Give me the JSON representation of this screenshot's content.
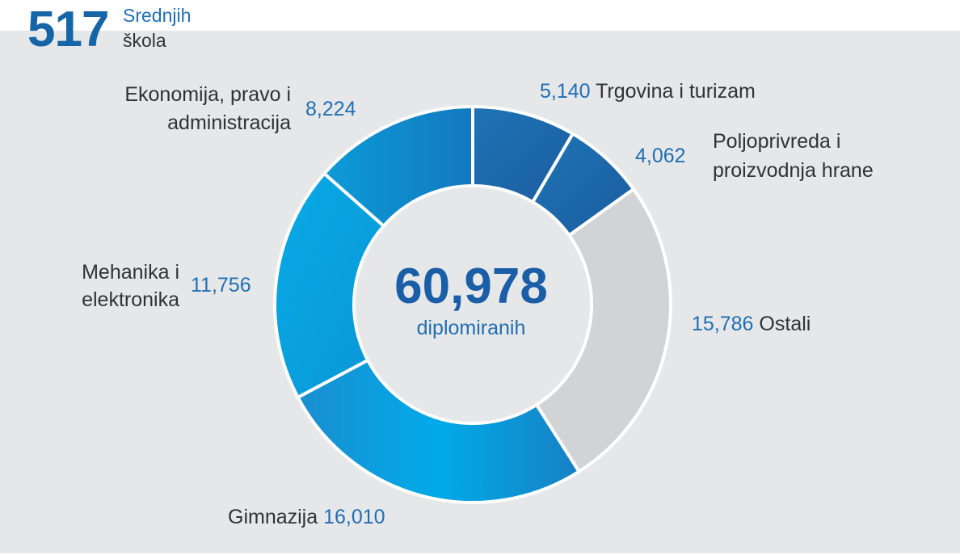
{
  "header": {
    "count": "517",
    "line1": "Srednjih",
    "line2": "škola"
  },
  "center": {
    "value": "60,978",
    "label": "diplomiranih"
  },
  "chart_data": {
    "type": "pie",
    "total": 60978,
    "slices": [
      {
        "label": "Trgovina i turizam",
        "label_line1": "Trgovina i turizam",
        "label_line2": "",
        "value": 5140,
        "value_label": "5,140",
        "color": "#1d69ab"
      },
      {
        "label": "Poljoprivreda i proizvodnja hrane",
        "label_line1": "Poljoprivreda i",
        "label_line2": "proizvodnja hrane",
        "value": 4062,
        "value_label": "4,062",
        "color": "#1c64a6"
      },
      {
        "label": "Ostali",
        "label_line1": "Ostali",
        "label_line2": "",
        "value": 15786,
        "value_label": "15,786",
        "color": "#d1d3d5"
      },
      {
        "label": "Gimnazija",
        "label_line1": "Gimnazija",
        "label_line2": "",
        "value": 16010,
        "value_label": "16,010",
        "color": "#07a4e1"
      },
      {
        "label": "Mehanika i elektronika",
        "label_line1": "Mehanika i",
        "label_line2": "elektronika",
        "value": 11756,
        "value_label": "11,756",
        "color": "#0aa6e0"
      },
      {
        "label": "Ekonomija, pravo i administracija",
        "label_line1": "Ekonomija, pravo i",
        "label_line2": "administracija",
        "value": 8224,
        "value_label": "8,224",
        "color": "#0f84c9"
      }
    ]
  }
}
